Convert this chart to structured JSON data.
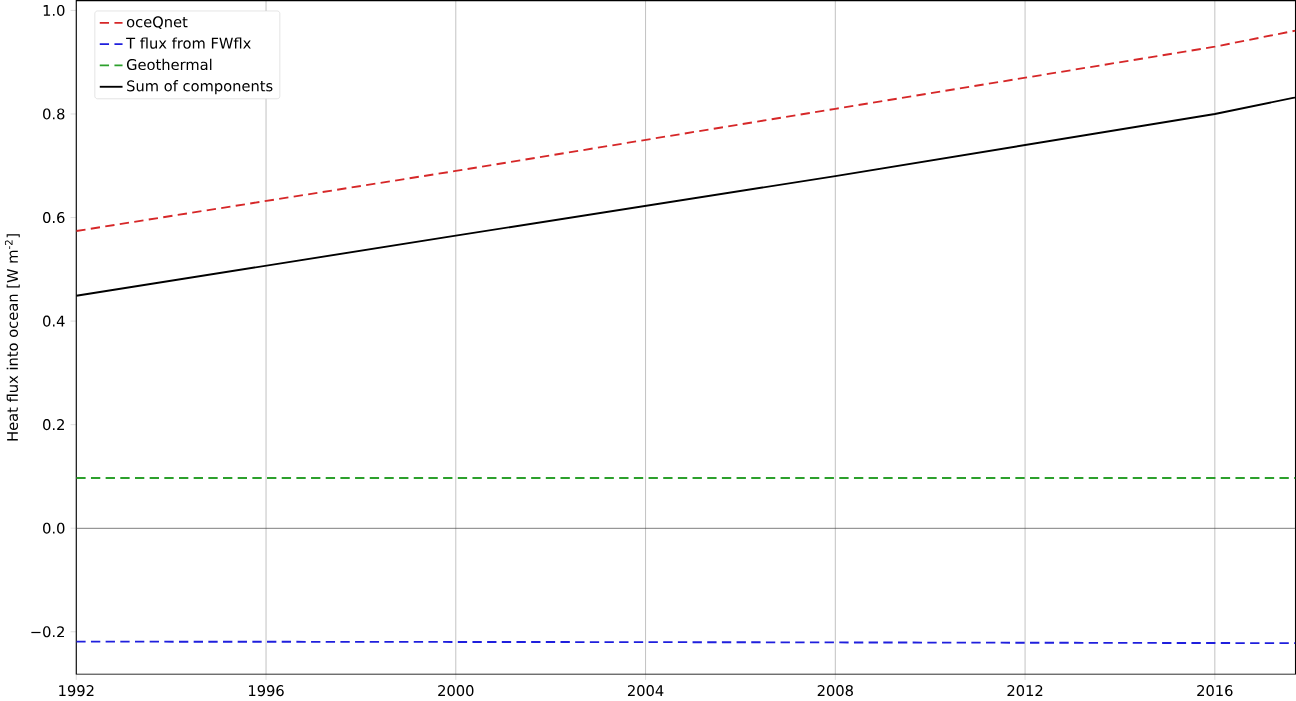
{
  "chart_data": {
    "type": "line",
    "ylabel": "Heat flux into ocean [W m$^{-2}$]",
    "xlim": [
      1992,
      2017.7
    ],
    "xticks": [
      1992,
      1996,
      2000,
      2004,
      2008,
      2012,
      2016
    ],
    "ylim": [
      -0.282,
      1.019
    ],
    "yticks": [
      {
        "value": -0.2,
        "label": "−0.2"
      },
      {
        "value": 0.0,
        "label": "0.0"
      },
      {
        "value": 0.2,
        "label": "0.2"
      },
      {
        "value": 0.4,
        "label": "0.4"
      },
      {
        "value": 0.6,
        "label": "0.6"
      },
      {
        "value": 0.8,
        "label": "0.8"
      },
      {
        "value": 1.0,
        "label": "1.0"
      }
    ],
    "grid": "x",
    "legend": "top left",
    "ref_lines": [
      {
        "axis": "y",
        "value": 0,
        "color": "#444444"
      }
    ],
    "series": [
      {
        "name": "oceQnet",
        "color": "#d62728",
        "line_style": "dashed",
        "x": [
          1992,
          2000,
          2008,
          2016,
          2017.7
        ],
        "values": [
          0.574,
          0.69,
          0.81,
          0.93,
          0.961
        ]
      },
      {
        "name": "T flux from FWflx",
        "color": "#1f1fdd",
        "line_style": "dashed",
        "x": [
          1992,
          2004,
          2017.7
        ],
        "values": [
          -0.219,
          -0.22,
          -0.222
        ]
      },
      {
        "name": "Geothermal",
        "color": "#2ca02c",
        "line_style": "dashed",
        "x": [
          1992,
          2017.7
        ],
        "values": [
          0.097,
          0.097
        ]
      },
      {
        "name": "Sum of components",
        "color": "#000000",
        "line_style": "solid",
        "x": [
          1992,
          2000,
          2008,
          2016,
          2017.7
        ],
        "values": [
          0.449,
          0.565,
          0.68,
          0.8,
          0.832
        ]
      }
    ]
  }
}
